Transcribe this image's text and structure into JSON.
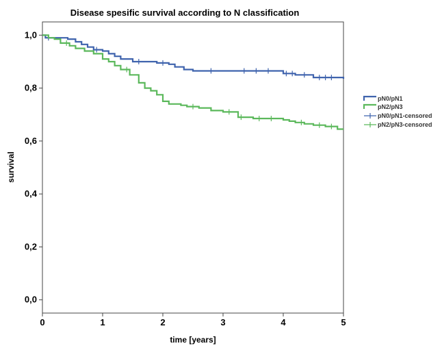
{
  "colors": {
    "blue": "#3f63ad",
    "green": "#5bb85b"
  },
  "chart_data": {
    "type": "line",
    "title": "Disease spesific survival according to N classification",
    "xlabel": "time [years]",
    "ylabel": "survival",
    "xlim": [
      0,
      5
    ],
    "ylim": [
      -0.05,
      1.05
    ],
    "x_ticks": [
      0,
      1,
      2,
      3,
      4,
      5
    ],
    "x_tick_labels": [
      "0",
      "1",
      "2",
      "3",
      "4",
      "5"
    ],
    "y_ticks": [
      0.0,
      0.2,
      0.4,
      0.6,
      0.8,
      1.0
    ],
    "y_tick_labels": [
      "0,0",
      "0,2",
      "0,4",
      "0,6",
      "0,8",
      "1,0"
    ],
    "grid": false,
    "legend_position": "right",
    "legend": [
      "pN0/pN1",
      "pN2/pN3",
      "pN0/pN1-censored",
      "pN2/pN3-censored"
    ],
    "series": [
      {
        "name": "pN0/pN1",
        "color": "#3f63ad",
        "step": true,
        "x": [
          0,
          0.05,
          0.42,
          0.55,
          0.65,
          0.75,
          0.85,
          1.0,
          1.1,
          1.2,
          1.3,
          1.5,
          1.9,
          2.1,
          2.2,
          2.35,
          2.5,
          3.0,
          4.0,
          4.2,
          4.5,
          5.0
        ],
        "y": [
          1.0,
          0.99,
          0.985,
          0.975,
          0.965,
          0.955,
          0.945,
          0.94,
          0.93,
          0.92,
          0.91,
          0.9,
          0.895,
          0.89,
          0.88,
          0.87,
          0.865,
          0.865,
          0.855,
          0.85,
          0.84,
          0.835
        ],
        "censored": [
          0.1,
          0.9,
          1.6,
          2.0,
          2.8,
          3.35,
          3.55,
          3.75,
          4.05,
          4.15,
          4.35,
          4.6,
          4.7,
          4.8
        ]
      },
      {
        "name": "pN2/pN3",
        "color": "#5bb85b",
        "step": true,
        "x": [
          0,
          0.1,
          0.2,
          0.3,
          0.45,
          0.55,
          0.7,
          0.85,
          1.0,
          1.1,
          1.2,
          1.3,
          1.45,
          1.6,
          1.7,
          1.8,
          1.9,
          2.0,
          2.1,
          2.3,
          2.4,
          2.6,
          2.8,
          3.0,
          3.25,
          3.5,
          4.0,
          4.1,
          4.2,
          4.35,
          4.5,
          4.7,
          4.9,
          5.0
        ],
        "y": [
          1.0,
          0.99,
          0.985,
          0.97,
          0.96,
          0.95,
          0.94,
          0.93,
          0.91,
          0.9,
          0.885,
          0.87,
          0.85,
          0.82,
          0.8,
          0.79,
          0.775,
          0.75,
          0.74,
          0.735,
          0.73,
          0.725,
          0.715,
          0.71,
          0.69,
          0.685,
          0.68,
          0.675,
          0.67,
          0.665,
          0.66,
          0.655,
          0.645,
          0.645
        ],
        "censored": [
          0.4,
          1.4,
          2.5,
          3.1,
          3.3,
          3.6,
          3.8,
          4.3,
          4.6,
          4.8
        ]
      }
    ]
  }
}
